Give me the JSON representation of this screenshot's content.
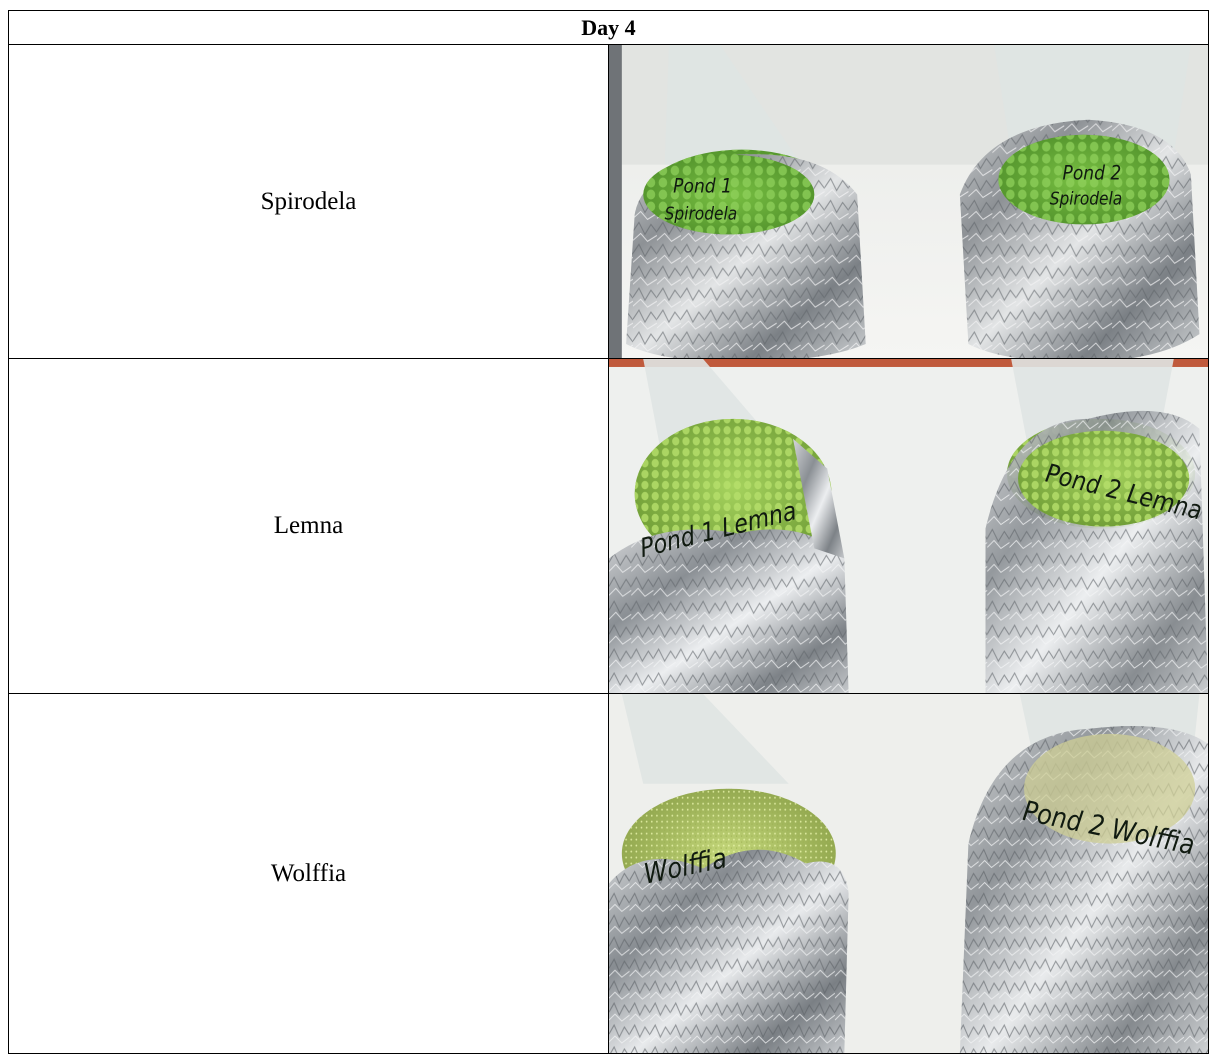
{
  "table": {
    "header": "Day 4",
    "rows": [
      {
        "label": "Spirodela",
        "photo": {
          "left_flask_label": [
            "Pond 1",
            "Spirodela"
          ],
          "right_flask_label": [
            "Pond 2",
            "Spirodela"
          ],
          "plant_color": "#6db33f"
        }
      },
      {
        "label": "Lemna",
        "photo": {
          "left_flask_label": [
            "Pond 1 Lemna"
          ],
          "right_flask_label": [
            "Pond 2 Lemna"
          ],
          "plant_color": "#8cc24a"
        }
      },
      {
        "label": "Wolffia",
        "photo": {
          "left_flask_label": [
            "Wolffia"
          ],
          "right_flask_label": [
            "Pond 2 Wolffia"
          ],
          "plant_color": "#a9c760"
        }
      }
    ]
  }
}
